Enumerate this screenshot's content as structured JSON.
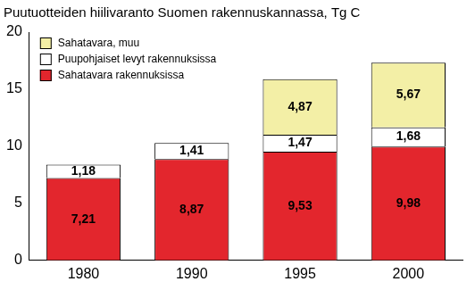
{
  "chart_data": {
    "type": "bar",
    "title": "Puutuotteiden hiilivaranto Suomen rakennuskannassa, Tg C",
    "categories": [
      "1980",
      "1990",
      "1995",
      "2000"
    ],
    "series": [
      {
        "name": "Sahatavara rakennuksissa",
        "color": "#e3262d",
        "values": [
          7.21,
          8.87,
          9.53,
          9.98
        ],
        "value_labels": [
          "7,21",
          "8,87",
          "9,53",
          "9,98"
        ]
      },
      {
        "name": "Puupohjaiset levyt rakennuksissa",
        "color": "#ffffff",
        "values": [
          1.18,
          1.41,
          1.47,
          1.68
        ],
        "value_labels": [
          "1,18",
          "1,41",
          "1,47",
          "1,68"
        ]
      },
      {
        "name": "Sahatavara, muu",
        "color": "#f3efa6",
        "values": [
          null,
          null,
          4.87,
          5.67
        ],
        "value_labels": [
          null,
          null,
          "4,87",
          "5,67"
        ]
      }
    ],
    "ylim": [
      0,
      20
    ],
    "yticks": [
      0,
      5,
      10,
      15,
      20
    ],
    "stacked": true,
    "data_labels": true,
    "grid": false,
    "legend": "upper left"
  }
}
